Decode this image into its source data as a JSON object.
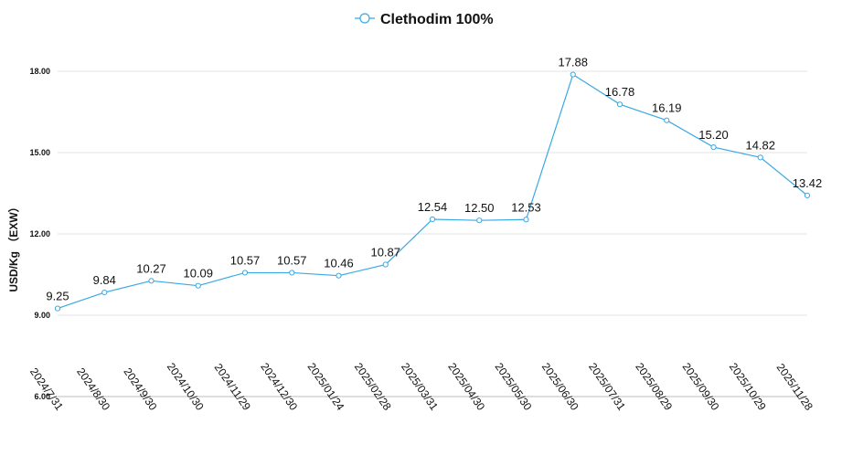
{
  "chart_data": {
    "type": "line",
    "title": "",
    "xlabel": "",
    "ylabel": "USD/Kg （EXW）",
    "ylim": [
      6,
      18
    ],
    "yticks": [
      "6.00",
      "9.00",
      "12.00",
      "15.00",
      "18.00"
    ],
    "grid": true,
    "legend_position": "top",
    "series_color": "#3aa8e4",
    "categories": [
      "2024/7/31",
      "2024/8/30",
      "2024/9/30",
      "2024/10/30",
      "2024/11/29",
      "2024/12/30",
      "2025/01/24",
      "2025/02/28",
      "2025/03/31",
      "2025/04/30",
      "2025/05/30",
      "2025/06/30",
      "2025/07/31",
      "2025/08/29",
      "2025/09/30",
      "2025/10/29",
      "2025/11/28"
    ],
    "series": [
      {
        "name": "Clethodim 100%",
        "values": [
          9.25,
          9.84,
          10.27,
          10.09,
          10.57,
          10.57,
          10.46,
          10.87,
          12.54,
          12.5,
          12.53,
          17.88,
          16.78,
          16.19,
          15.2,
          14.82,
          13.42
        ],
        "labels": [
          "9.25",
          "9.84",
          "10.27",
          "10.09",
          "10.57",
          "10.57",
          "10.46",
          "10.87",
          "12.54",
          "12.50",
          "12.53",
          "17.88",
          "16.78",
          "16.19",
          "15.20",
          "14.82",
          "13.42"
        ]
      }
    ]
  }
}
